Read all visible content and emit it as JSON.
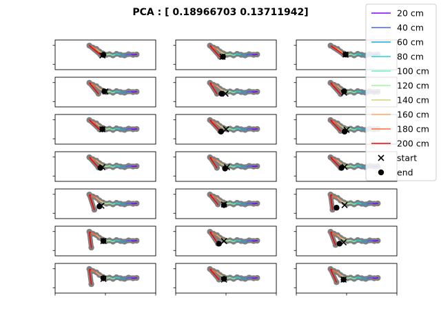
{
  "chart_data": {
    "type": "line",
    "title": "PCA : [ 0.18966703  0.13711942]",
    "grid": false,
    "legend_position": "top-right",
    "panel_layout": {
      "rows": 7,
      "cols": 3
    },
    "xlim": [
      -1.0,
      1.0
    ],
    "ylim": [
      -0.45,
      0.45
    ],
    "legend": [
      {
        "label": "20 cm",
        "color": "#7f00ff",
        "kind": "line"
      },
      {
        "label": "40 cm",
        "color": "#4a63f0",
        "kind": "line"
      },
      {
        "label": "60 cm",
        "color": "#14a6e6",
        "kind": "line"
      },
      {
        "label": "80 cm",
        "color": "#22d5d5",
        "kind": "line"
      },
      {
        "label": "100 cm",
        "color": "#66f0c4",
        "kind": "line"
      },
      {
        "label": "120 cm",
        "color": "#9dfa97",
        "kind": "line"
      },
      {
        "label": "140 cm",
        "color": "#d3d27a",
        "kind": "line"
      },
      {
        "label": "160 cm",
        "color": "#ffa460",
        "kind": "line"
      },
      {
        "label": "180 cm",
        "color": "#ff6a3a",
        "kind": "line"
      },
      {
        "label": "200 cm",
        "color": "#ff0000",
        "kind": "line"
      },
      {
        "label": "start",
        "color": "#000000",
        "kind": "x-marker"
      },
      {
        "label": "end",
        "color": "#000000",
        "kind": "dot-marker"
      }
    ],
    "base_trajectory": {
      "x": [
        -0.32,
        -0.25,
        -0.18,
        -0.12,
        -0.05,
        0.02,
        0.08,
        0.15,
        0.22,
        0.3,
        0.38,
        0.46,
        0.55,
        0.62
      ],
      "y": [
        0.28,
        0.22,
        0.18,
        0.1,
        0.04,
        0.0,
        0.02,
        -0.02,
        0.03,
        0.0,
        -0.02,
        0.02,
        0.0,
        0.01
      ]
    },
    "panels": [
      {
        "tip": [
          -0.1,
          0.0
        ],
        "start": [
          -0.06,
          -0.02
        ],
        "end": [
          -0.04,
          0.0
        ]
      },
      {
        "tip": [
          -0.12,
          -0.06
        ],
        "start": [
          -0.07,
          -0.06
        ],
        "end": [
          -0.06,
          -0.06
        ]
      },
      {
        "tip": [
          -0.06,
          0.01
        ],
        "start": [
          -0.02,
          0.01
        ],
        "end": [
          -0.02,
          0.01
        ]
      },
      {
        "tip": [
          -0.14,
          -0.05
        ],
        "start": [
          0.0,
          0.02
        ],
        "end": [
          -0.02,
          0.02
        ]
      },
      {
        "tip": [
          -0.18,
          -0.05
        ],
        "start": [
          -0.01,
          -0.05
        ],
        "end": [
          -0.09,
          -0.05
        ]
      },
      {
        "tip": [
          -0.12,
          -0.06
        ],
        "start": [
          -0.05,
          -0.02
        ],
        "end": [
          -0.05,
          0.02
        ]
      },
      {
        "tip": [
          -0.12,
          0.0
        ],
        "start": [
          -0.06,
          0.0
        ],
        "end": [
          -0.06,
          0.0
        ]
      },
      {
        "tip": [
          -0.12,
          -0.05
        ],
        "start": [
          0.0,
          0.0
        ],
        "end": [
          -0.1,
          -0.07
        ]
      },
      {
        "tip": [
          -0.12,
          -0.05
        ],
        "start": [
          0.0,
          -0.02
        ],
        "end": [
          -0.04,
          -0.07
        ]
      },
      {
        "tip": [
          -0.14,
          -0.03
        ],
        "start": [
          -0.06,
          -0.02
        ],
        "end": [
          -0.1,
          -0.04
        ]
      },
      {
        "tip": [
          -0.18,
          -0.04
        ],
        "start": [
          0.02,
          -0.02
        ],
        "end": [
          -0.02,
          -0.06
        ]
      },
      {
        "tip": [
          -0.12,
          -0.04
        ],
        "start": [
          -0.04,
          -0.01
        ],
        "end": [
          -0.1,
          -0.04
        ]
      },
      {
        "tip": [
          -0.22,
          -0.18
        ],
        "start": [
          -0.08,
          -0.06
        ],
        "end": [
          -0.12,
          -0.08
        ]
      },
      {
        "tip": [
          -0.16,
          -0.02
        ],
        "start": [
          -0.04,
          -0.02
        ],
        "end": [
          -0.04,
          -0.04
        ]
      },
      {
        "tip": [
          -0.28,
          -0.18
        ],
        "start": [
          -0.04,
          -0.04
        ],
        "end": [
          -0.2,
          -0.12
        ]
      },
      {
        "tip": [
          -0.28,
          -0.2
        ],
        "start": [
          -0.04,
          0.0
        ],
        "end": [
          -0.04,
          0.0
        ]
      },
      {
        "tip": [
          -0.16,
          -0.08
        ],
        "start": [
          -0.04,
          0.0
        ],
        "end": [
          -0.14,
          -0.08
        ]
      },
      {
        "tip": [
          -0.22,
          -0.12
        ],
        "start": [
          -0.06,
          -0.04
        ],
        "end": [
          -0.14,
          -0.08
        ]
      },
      {
        "tip": [
          -0.28,
          -0.18
        ],
        "start": [
          -0.04,
          -0.02
        ],
        "end": [
          -0.04,
          0.0
        ]
      },
      {
        "tip": [
          -0.14,
          -0.04
        ],
        "start": [
          -0.04,
          -0.04
        ],
        "end": [
          -0.04,
          -0.02
        ]
      },
      {
        "tip": [
          -0.2,
          -0.12
        ],
        "start": [
          -0.06,
          -0.04
        ],
        "end": [
          -0.06,
          -0.04
        ]
      }
    ]
  }
}
